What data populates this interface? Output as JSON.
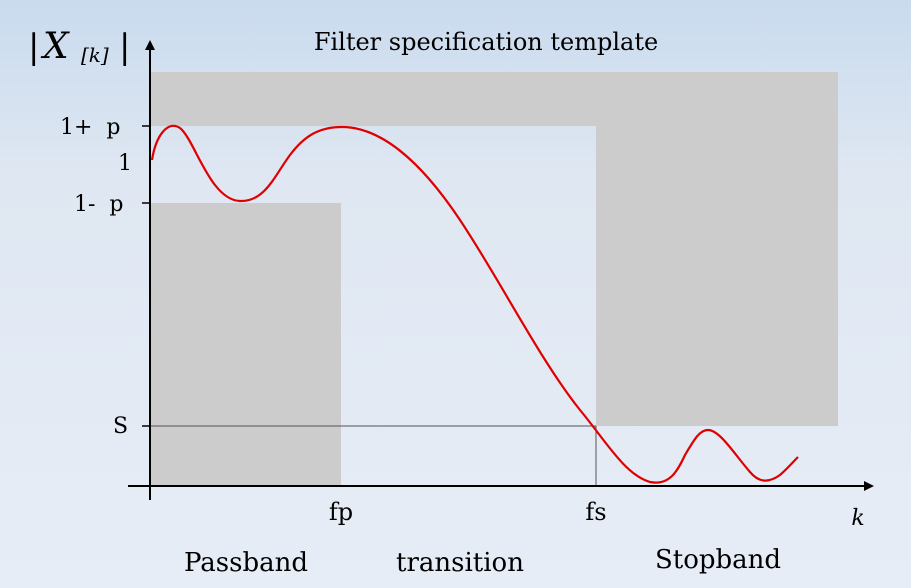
{
  "title": "Filter specification template",
  "y_axis": {
    "bar_left": "|",
    "letter": "X",
    "subscript": "[k]",
    "bar_right": "|"
  },
  "x_axis": {
    "label": "k"
  },
  "y_marks": {
    "upper": "1+  p",
    "one": "1",
    "lower": "1-  p",
    "stop": "S"
  },
  "x_marks": {
    "passband_edge": "fp",
    "stopband_edge": "fs"
  },
  "regions": {
    "passband": "Passband",
    "transition": "transition",
    "stopband": "Stopband"
  },
  "colors": {
    "forbidden_region": "#cccccc",
    "response_curve": "#e00000",
    "axis": "#000000"
  }
}
